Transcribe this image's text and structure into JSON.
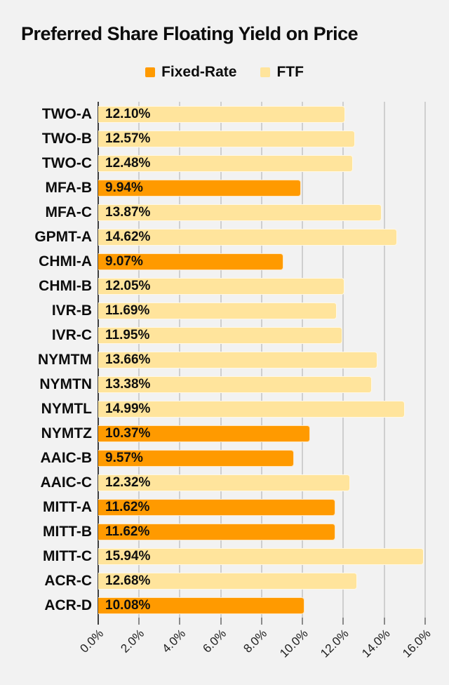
{
  "title": "Preferred Share Floating Yield on Price",
  "legend": {
    "items": [
      {
        "label": "Fixed-Rate",
        "color": "#FF9A00"
      },
      {
        "label": "FTF",
        "color": "#FFE49C"
      }
    ]
  },
  "colors": {
    "background": "#F2F2F2",
    "fixed_rate": "#FF9A00",
    "ftf": "#FFE49C",
    "gridline": "#CFCFCF",
    "axis_line": "#3F3F3F",
    "tick": "#8A8A8A",
    "text": "#0D0D0D"
  },
  "chart_data": {
    "type": "bar",
    "orientation": "horizontal",
    "title": "Preferred Share Floating Yield on Price",
    "xlabel": "",
    "ylabel": "",
    "xlim": [
      0,
      16.55
    ],
    "grid": "vertical",
    "legend_position": "top-center",
    "x_ticks": [
      0,
      2,
      4,
      6,
      8,
      10,
      12,
      14,
      16
    ],
    "x_tick_labels": [
      "0.0%",
      "2.0%",
      "4.0%",
      "6.0%",
      "8.0%",
      "10.0%",
      "12.0%",
      "14.0%",
      "16.0%"
    ],
    "series_names": [
      "Fixed-Rate",
      "FTF"
    ],
    "categories": [
      "TWO-A",
      "TWO-B",
      "TWO-C",
      "MFA-B",
      "MFA-C",
      "GPMT-A",
      "CHMI-A",
      "CHMI-B",
      "IVR-B",
      "IVR-C",
      "NYMTM",
      "NYMTN",
      "NYMTL",
      "NYMTZ",
      "AAIC-B",
      "AAIC-C",
      "MITT-A",
      "MITT-B",
      "MITT-C",
      "ACR-C",
      "ACR-D"
    ],
    "values": [
      12.1,
      12.57,
      12.48,
      9.94,
      13.87,
      14.62,
      9.07,
      12.05,
      11.69,
      11.95,
      13.66,
      13.38,
      14.99,
      10.37,
      9.57,
      12.32,
      11.62,
      11.62,
      15.94,
      12.68,
      10.08
    ],
    "value_labels": [
      "12.10%",
      "12.57%",
      "12.48%",
      "9.94%",
      "13.87%",
      "14.62%",
      "9.07%",
      "12.05%",
      "11.69%",
      "11.95%",
      "13.66%",
      "13.38%",
      "14.99%",
      "10.37%",
      "9.57%",
      "12.32%",
      "11.62%",
      "11.62%",
      "15.94%",
      "12.68%",
      "10.08%"
    ],
    "bar_series": [
      "FTF",
      "FTF",
      "FTF",
      "Fixed-Rate",
      "FTF",
      "FTF",
      "Fixed-Rate",
      "FTF",
      "FTF",
      "FTF",
      "FTF",
      "FTF",
      "FTF",
      "Fixed-Rate",
      "Fixed-Rate",
      "FTF",
      "Fixed-Rate",
      "Fixed-Rate",
      "FTF",
      "FTF",
      "Fixed-Rate"
    ]
  }
}
